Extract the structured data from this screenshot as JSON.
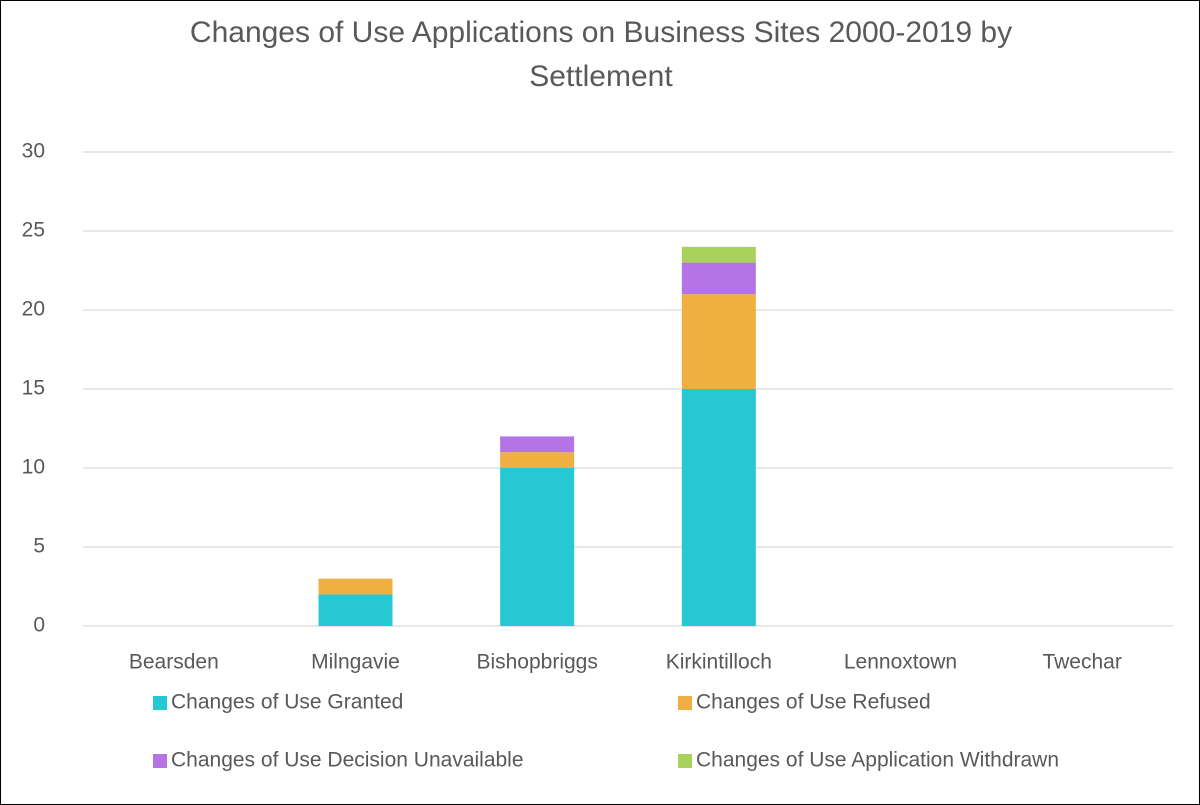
{
  "chart_data": {
    "type": "stacked_bar",
    "title": "Changes of Use Applications on Business Sites 2000-2019 by Settlement",
    "categories": [
      "Bearsden",
      "Milngavie",
      "Bishopbriggs",
      "Kirkintilloch",
      "Lennoxtown",
      "Twechar"
    ],
    "series": [
      {
        "name": "Changes of Use Granted",
        "color": "#26c9d3",
        "values": [
          0,
          2,
          10,
          15,
          0,
          0
        ]
      },
      {
        "name": "Changes of Use Refused",
        "color": "#f0b041",
        "values": [
          0,
          1,
          1,
          6,
          0,
          0
        ]
      },
      {
        "name": "Changes of Use Decision Unavailable",
        "color": "#b474e6",
        "values": [
          0,
          0,
          1,
          2,
          0,
          0
        ]
      },
      {
        "name": "Changes of Use Application Withdrawn",
        "color": "#a9d25c",
        "values": [
          0,
          0,
          0,
          1,
          0,
          0
        ]
      }
    ],
    "ylim": [
      0,
      30
    ],
    "yticks": [
      0,
      5,
      10,
      15,
      20,
      25,
      30
    ],
    "grid": true,
    "legend": "bottom"
  }
}
